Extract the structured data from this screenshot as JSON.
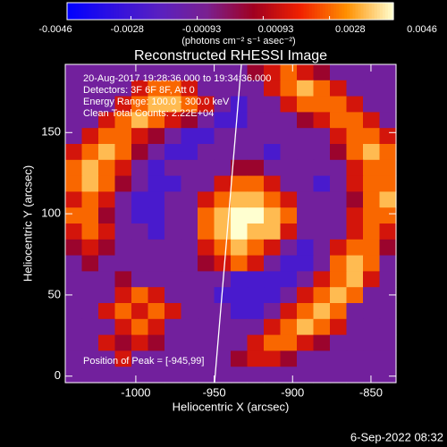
{
  "chart_data": {
    "type": "heatmap",
    "title": "Reconstructed RHESSI Image",
    "xlabel": "Heliocentric X (arcsec)",
    "ylabel": "Heliocentric Y (arcsec)",
    "annotations": [
      "20-Aug-2017 19:28:36.000 to 19:34:36.000",
      "Detectors: 3F 6F 8F, Att 0",
      "Energy Range: 100.0 - 300.0 keV",
      "Clean     Total Counts: 2.22E+04"
    ],
    "peak_label": "Position of Peak = [-945,99]",
    "colorbar_label": "(photons cm⁻² s⁻¹ asec⁻²)",
    "footer": "6-Sep-2022 08:32",
    "xlim": [
      -1045,
      -834
    ],
    "xticks": [
      -1000,
      -950,
      -900,
      -850
    ],
    "ylim": [
      -4,
      192
    ],
    "yticks": [
      0,
      50,
      100,
      150
    ],
    "clim": [
      -0.0046,
      0.0046
    ],
    "cticks": [
      -0.0046,
      -0.0028,
      -0.00093,
      0.00093,
      0.0028,
      0.0046
    ],
    "colormap": [
      "#0000ff",
      "#3010e0",
      "#5a20c0",
      "#7a2090",
      "#a00020",
      "#f02000",
      "#ff9000",
      "#ffffd0"
    ],
    "z": [
      [
        -0.001,
        -0.001,
        -0.001,
        -0.001,
        -0.001,
        -0.001,
        -0.001,
        -0.001,
        -0.001,
        -0.001,
        -0.001,
        0.0005,
        0.0015,
        0.0028,
        0.0015,
        0.0005,
        -0.001,
        -0.001,
        -0.001,
        -0.001
      ],
      [
        -0.001,
        -0.001,
        -0.001,
        -0.001,
        0.0015,
        0.0028,
        0.0028,
        0.0015,
        -0.001,
        -0.001,
        -0.001,
        -0.001,
        0.0015,
        0.0028,
        0.0038,
        0.0028,
        0.0015,
        -0.001,
        -0.001,
        -0.001
      ],
      [
        -0.001,
        -0.001,
        -0.001,
        0.0015,
        0.0028,
        0.0038,
        0.0038,
        0.0028,
        0.0015,
        -0.001,
        -0.0025,
        -0.001,
        -0.001,
        0.0015,
        0.0028,
        0.0028,
        0.0028,
        0.0015,
        -0.001,
        -0.001
      ],
      [
        -0.001,
        -0.001,
        0.0015,
        0.0028,
        0.0038,
        0.0028,
        0.0015,
        0.0005,
        -0.001,
        -0.0025,
        -0.0025,
        -0.001,
        -0.001,
        -0.001,
        0.0005,
        0.0015,
        0.0028,
        0.0028,
        0.0015,
        -0.001
      ],
      [
        -0.001,
        0.0015,
        0.0028,
        0.0028,
        0.0015,
        0.0005,
        -0.001,
        -0.0025,
        -0.0025,
        -0.001,
        -0.001,
        -0.001,
        -0.001,
        -0.001,
        -0.001,
        -0.001,
        0.0015,
        0.0028,
        0.0028,
        0.0015
      ],
      [
        0.0015,
        0.0028,
        0.0038,
        0.0028,
        0.0005,
        -0.001,
        -0.0025,
        -0.0025,
        -0.001,
        -0.001,
        -0.001,
        -0.001,
        -0.0025,
        -0.001,
        -0.001,
        -0.001,
        0.0005,
        0.0028,
        0.0038,
        0.0028
      ],
      [
        0.0028,
        0.0038,
        0.0028,
        0.0015,
        -0.001,
        -0.0025,
        -0.001,
        -0.001,
        -0.001,
        -0.001,
        0.0005,
        0.0005,
        -0.001,
        -0.001,
        -0.001,
        -0.001,
        -0.001,
        0.0015,
        0.0028,
        0.0028
      ],
      [
        0.0028,
        0.0038,
        0.0028,
        0.0005,
        -0.001,
        -0.0025,
        -0.0025,
        -0.001,
        -0.001,
        0.0015,
        0.0028,
        0.0028,
        0.0015,
        -0.001,
        -0.001,
        -0.0025,
        -0.001,
        0.0015,
        0.0028,
        0.0028
      ],
      [
        0.0015,
        0.0028,
        0.0015,
        -0.001,
        -0.0025,
        -0.0025,
        -0.001,
        -0.001,
        0.0015,
        0.0028,
        0.0038,
        0.0038,
        0.0028,
        0.0015,
        -0.001,
        -0.001,
        -0.001,
        0.0005,
        0.0028,
        0.0038
      ],
      [
        0.0028,
        0.0028,
        0.0005,
        -0.001,
        -0.0025,
        -0.0025,
        -0.001,
        -0.001,
        0.0028,
        0.0038,
        0.0046,
        0.0046,
        0.0038,
        0.0028,
        -0.001,
        -0.001,
        -0.001,
        0.0015,
        0.0028,
        0.0028
      ],
      [
        0.0015,
        0.0028,
        0.0015,
        -0.001,
        -0.001,
        -0.0025,
        -0.001,
        -0.001,
        0.0028,
        0.0038,
        0.0046,
        0.0038,
        0.0038,
        0.0015,
        -0.001,
        -0.001,
        -0.001,
        0.0015,
        0.0028,
        0.0015
      ],
      [
        0.0005,
        0.0015,
        0.0005,
        -0.001,
        -0.001,
        -0.001,
        -0.001,
        -0.001,
        0.0015,
        0.0028,
        0.0038,
        0.0028,
        0.0015,
        -0.001,
        -0.0025,
        -0.001,
        0.0015,
        0.0028,
        0.0028,
        0.0005
      ],
      [
        -0.001,
        0.0005,
        -0.001,
        -0.001,
        -0.001,
        -0.001,
        -0.001,
        -0.001,
        0.0005,
        0.0015,
        0.0028,
        0.0015,
        -0.001,
        -0.0025,
        -0.0025,
        -0.001,
        0.0028,
        0.0038,
        0.0028,
        -0.001
      ],
      [
        -0.001,
        -0.001,
        -0.001,
        0.0005,
        -0.001,
        -0.001,
        -0.001,
        -0.001,
        -0.001,
        -0.001,
        -0.0025,
        -0.0025,
        -0.0025,
        -0.0025,
        -0.001,
        0.0015,
        0.0028,
        0.0038,
        0.0015,
        -0.001
      ],
      [
        -0.001,
        -0.001,
        -0.001,
        0.0015,
        0.0028,
        0.0015,
        -0.001,
        -0.001,
        -0.001,
        -0.0025,
        -0.0025,
        -0.0025,
        -0.0025,
        -0.001,
        0.0015,
        0.0028,
        0.0038,
        0.0028,
        -0.001,
        -0.001
      ],
      [
        -0.001,
        -0.001,
        0.0015,
        0.0028,
        0.0015,
        0.0028,
        0.0015,
        -0.001,
        -0.001,
        -0.001,
        -0.0025,
        -0.0025,
        -0.001,
        0.0015,
        0.0028,
        0.0038,
        0.0028,
        -0.001,
        -0.001,
        -0.001
      ],
      [
        -0.001,
        -0.001,
        -0.001,
        0.0015,
        0.0028,
        0.0015,
        -0.001,
        -0.001,
        -0.001,
        -0.001,
        -0.001,
        -0.001,
        0.0015,
        0.0028,
        0.0038,
        0.0028,
        0.0015,
        -0.001,
        -0.001,
        -0.001
      ],
      [
        -0.001,
        -0.001,
        0.0015,
        0.0005,
        0.0015,
        0.0005,
        -0.001,
        -0.001,
        -0.001,
        -0.001,
        -0.001,
        0.0015,
        0.0028,
        0.0028,
        0.0015,
        0.0005,
        -0.001,
        -0.001,
        -0.001,
        -0.001
      ],
      [
        -0.001,
        -0.001,
        -0.001,
        0.0015,
        -0.001,
        -0.001,
        -0.001,
        -0.001,
        -0.001,
        -0.001,
        0.0005,
        0.0015,
        0.0015,
        0.0005,
        -0.001,
        -0.001,
        -0.001,
        -0.001,
        -0.001,
        -0.001
      ],
      [
        -0.001,
        -0.001,
        -0.001,
        -0.001,
        -0.001,
        -0.001,
        -0.001,
        -0.001,
        -0.001,
        -0.001,
        -0.001,
        -0.001,
        -0.001,
        -0.001,
        -0.001,
        -0.001,
        -0.001,
        -0.001,
        -0.001,
        -0.001
      ]
    ]
  }
}
